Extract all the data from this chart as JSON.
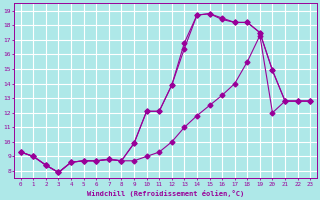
{
  "xlabel": "Windchill (Refroidissement éolien,°C)",
  "xlim": [
    -0.5,
    23.5
  ],
  "ylim": [
    7.5,
    19.5
  ],
  "xticks": [
    0,
    1,
    2,
    3,
    4,
    5,
    6,
    7,
    8,
    9,
    10,
    11,
    12,
    13,
    14,
    15,
    16,
    17,
    18,
    19,
    20,
    21,
    22,
    23
  ],
  "yticks": [
    8,
    9,
    10,
    11,
    12,
    13,
    14,
    15,
    16,
    17,
    18,
    19
  ],
  "bg_color": "#aee8e8",
  "line_color": "#990099",
  "grid_color": "#ffffff",
  "line1_x": [
    0,
    1,
    2,
    3,
    4,
    5,
    6,
    7,
    8,
    9,
    10,
    11,
    12,
    13,
    14,
    15,
    16,
    17,
    18,
    19,
    20,
    21,
    22,
    23
  ],
  "line1_y": [
    9.3,
    9.0,
    8.4,
    7.9,
    8.6,
    8.7,
    8.7,
    8.8,
    8.7,
    9.9,
    12.1,
    12.1,
    13.9,
    16.4,
    18.7,
    18.8,
    18.4,
    18.2,
    18.2,
    17.5,
    14.9,
    12.8,
    12.8,
    12.8
  ],
  "line2_x": [
    0,
    1,
    2,
    3,
    4,
    5,
    6,
    7,
    8,
    9,
    10,
    11,
    12,
    13,
    14,
    15,
    16,
    17,
    18,
    19,
    20,
    21,
    22,
    23
  ],
  "line2_y": [
    9.3,
    9.0,
    8.4,
    7.9,
    8.6,
    8.7,
    8.7,
    8.8,
    8.7,
    9.9,
    12.1,
    12.1,
    13.9,
    16.8,
    18.7,
    18.8,
    18.5,
    18.2,
    18.2,
    17.5,
    14.9,
    12.8,
    12.8,
    12.8
  ],
  "line3_x": [
    0,
    1,
    2,
    3,
    4,
    5,
    6,
    7,
    8,
    9,
    10,
    11,
    12,
    13,
    14,
    15,
    16,
    17,
    18,
    19,
    20,
    21,
    22,
    23
  ],
  "line3_y": [
    9.3,
    9.0,
    8.4,
    7.9,
    8.6,
    8.7,
    8.7,
    8.8,
    8.7,
    8.7,
    9.0,
    9.3,
    10.0,
    11.0,
    11.8,
    12.5,
    13.2,
    14.0,
    15.5,
    17.3,
    12.0,
    12.8,
    12.8,
    12.8
  ]
}
